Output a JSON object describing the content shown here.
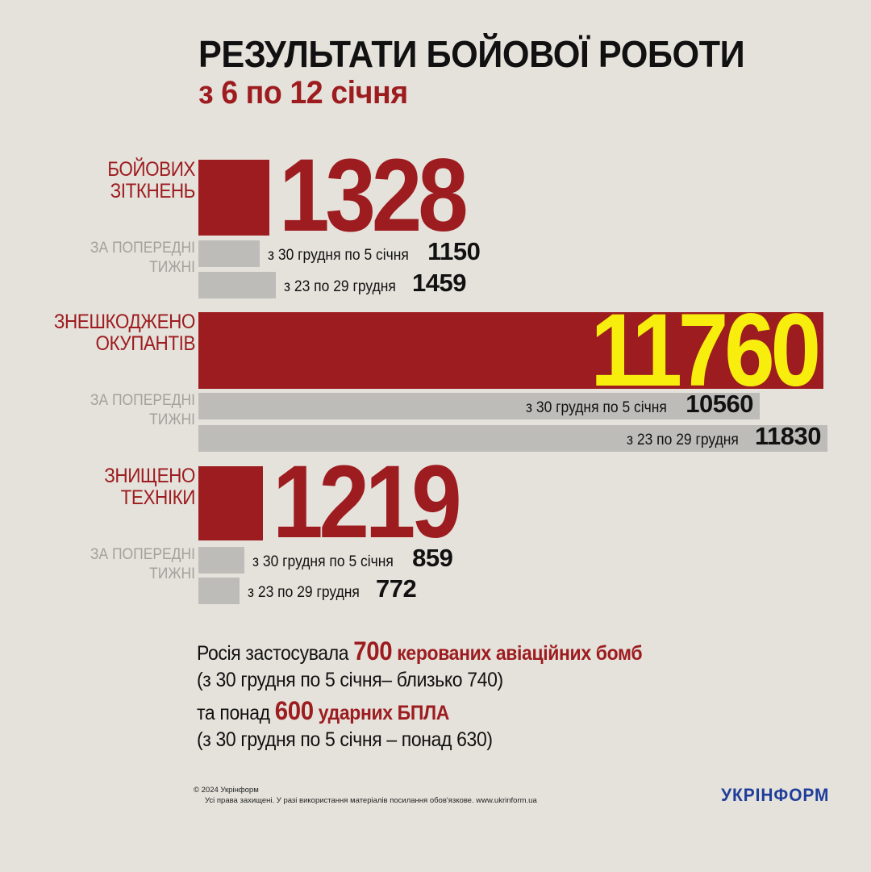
{
  "title": "РЕЗУЛЬТАТИ БОЙОВОЇ РОБОТИ",
  "subtitle": "з 6 по 12 січня",
  "chart_data": {
    "type": "bar",
    "orientation": "horizontal",
    "groups": [
      {
        "label": "БОЙОВИХ ЗІТКНЕНЬ",
        "prev_label": "ЗА ПОПЕРЕДНІ ТИЖНІ",
        "current": 1328,
        "previous": [
          {
            "period": "з 30 грудня по 5 січня",
            "value": 1150
          },
          {
            "period": "з 23 по 29 грудня",
            "value": 1459
          }
        ]
      },
      {
        "label": "ЗНЕШКОДЖЕНО ОКУПАНТІВ",
        "prev_label": "ЗА ПОПЕРЕДНІ ТИЖНІ",
        "current": 11760,
        "previous": [
          {
            "period": "з 30 грудня по 5 січня",
            "value": 10560
          },
          {
            "period": "з 23 по 29 грудня",
            "value": 11830
          }
        ]
      },
      {
        "label": "ЗНИЩЕНО ТЕХНІКИ",
        "prev_label": "ЗА ПОПЕРЕДНІ ТИЖНІ",
        "current": 1219,
        "previous": [
          {
            "period": "з 30 грудня по 5 січня",
            "value": 859
          },
          {
            "period": "з 23 по 29 грудня",
            "value": 772
          }
        ]
      }
    ],
    "colors": {
      "current": "#9d1c20",
      "previous": "#bdbcb8",
      "highlight": "#f7ee0e"
    }
  },
  "notes": {
    "line1_prefix": "Росія застосувала",
    "line1_number": "700",
    "line1_suffix": "керованих авіаційних бомб",
    "line2": "(з 30 грудня по 5 січня– близько 740)",
    "line3_prefix": "та понад",
    "line3_number": "600",
    "line3_suffix": "ударних БПЛА",
    "line4": "(з 30 грудня по 5 січня – понад 630)"
  },
  "footer": {
    "copyright": "© 2024 Укрінформ",
    "rights": "Усі права захищені. У разі використання матеріалів посилання обов'язкове. www.ukrinform.ua"
  },
  "logo": "УКРІНФОРМ"
}
